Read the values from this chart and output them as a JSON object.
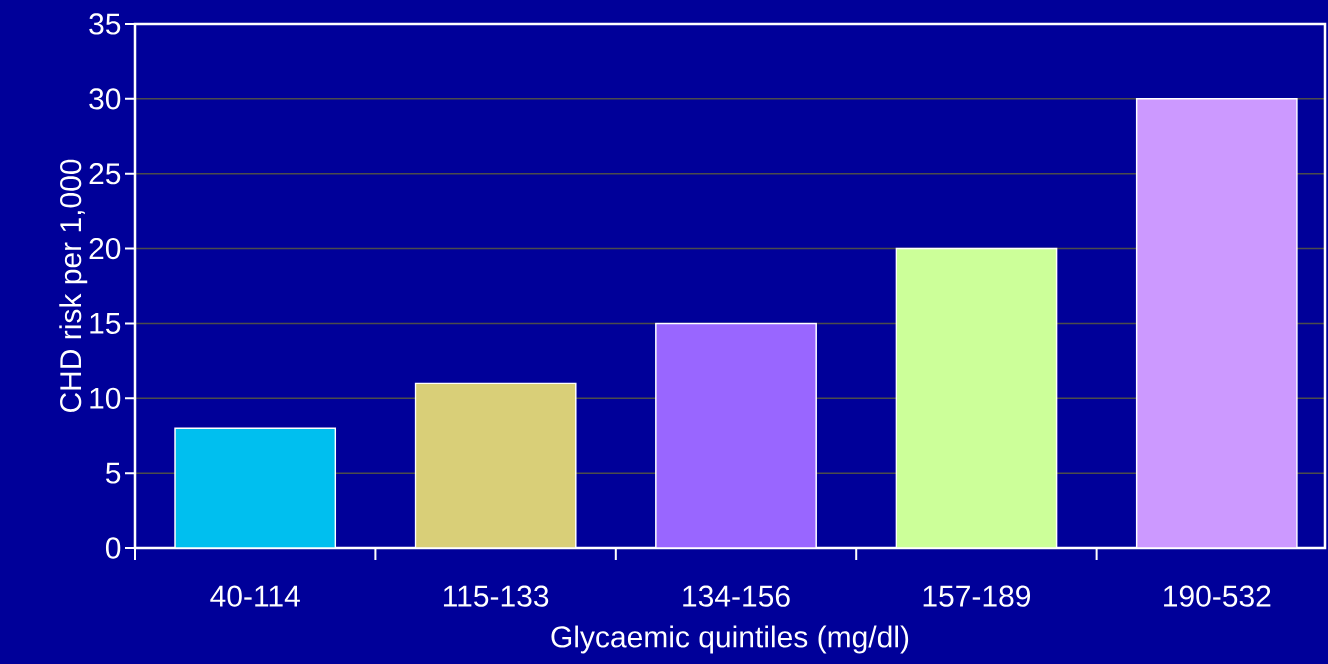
{
  "chart_data": {
    "type": "bar",
    "xlabel": "Glycaemic quintiles (mg/dl)",
    "ylabel": "CHD risk per 1,000",
    "categories": [
      "40-114",
      "115-133",
      "134-156",
      "157-189",
      "190-532"
    ],
    "values": [
      8,
      11,
      15,
      20,
      30
    ],
    "colors": [
      "#00bfef",
      "#d9cf78",
      "#9966ff",
      "#ccff99",
      "#cc99ff"
    ],
    "ylim": [
      0,
      35
    ],
    "yticks": [
      0,
      5,
      10,
      15,
      20,
      25,
      30,
      35
    ],
    "grid": "y"
  }
}
